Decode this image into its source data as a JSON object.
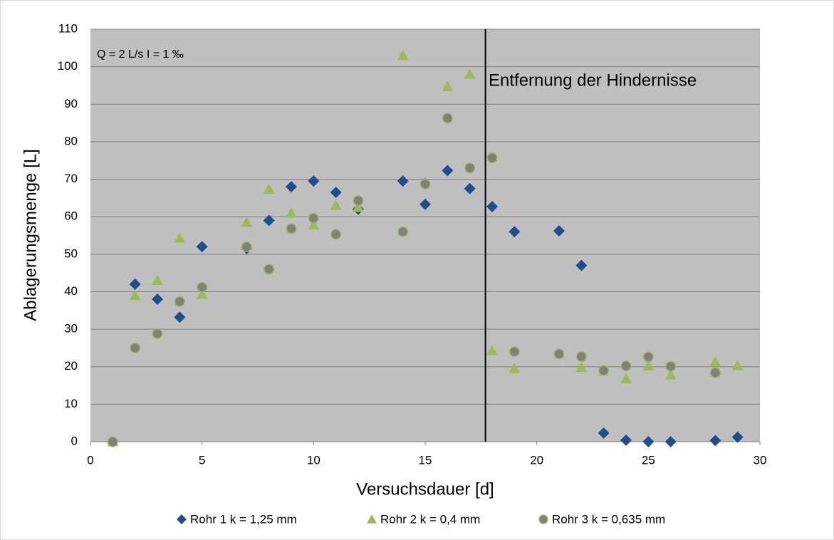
{
  "chart_data": {
    "type": "scatter",
    "xlabel": "Versuchsdauer [d]",
    "ylabel": "Ablagerungsmenge [L]",
    "annotations": [
      "Q = 2 L/s   I = 1 ‰",
      "Entfernung der Hindernisse"
    ],
    "vline_x": 17.7,
    "xlim": [
      0,
      30
    ],
    "xticks": [
      0,
      5,
      10,
      15,
      20,
      25,
      30
    ],
    "ylim": [
      0,
      110
    ],
    "yticks": [
      0,
      10,
      20,
      30,
      40,
      50,
      60,
      70,
      80,
      90,
      100,
      110
    ],
    "grid": true,
    "legend": "bottom",
    "series": [
      {
        "name": "Rohr 1 k = 1,25 mm",
        "color": "#1f4e8c",
        "marker": "diamond",
        "x": [
          1,
          2,
          3,
          4,
          5,
          7,
          8,
          9,
          10,
          11,
          12,
          14,
          15,
          16,
          17,
          18,
          19,
          21,
          22,
          23,
          24,
          25,
          26,
          28,
          29
        ],
        "values": [
          0,
          42,
          38,
          33.2,
          52,
          51.5,
          59,
          68,
          69.5,
          66.5,
          62,
          69.5,
          63.3,
          72.3,
          67.5,
          62.7,
          56,
          56.2,
          47,
          2.3,
          0.4,
          0,
          0,
          0.3,
          1.2
        ]
      },
      {
        "name": "Rohr 2 k = 0,4 mm",
        "color": "#9bbb59",
        "marker": "triangle",
        "x": [
          1,
          2,
          3,
          4,
          5,
          7,
          8,
          9,
          10,
          11,
          12,
          14,
          15,
          16,
          17,
          18,
          19,
          21,
          22,
          23,
          24,
          25,
          26,
          28,
          29
        ],
        "values": [
          0,
          39,
          43,
          54.3,
          39.3,
          58.5,
          67.3,
          61,
          57.8,
          63,
          62.5,
          103,
          69.3,
          94.7,
          98,
          24.3,
          19.5,
          23.5,
          19.8,
          18.8,
          16.8,
          20.2,
          17.8,
          21.3,
          20.3
        ]
      },
      {
        "name": "Rohr 3 k = 0,635 mm",
        "color": "#7f7f7f",
        "marker": "circle",
        "x": [
          1,
          2,
          3,
          4,
          5,
          7,
          8,
          9,
          10,
          11,
          12,
          14,
          15,
          16,
          17,
          18,
          19,
          21,
          22,
          23,
          24,
          25,
          26,
          28
        ],
        "values": [
          0,
          25,
          28.8,
          37.4,
          41.2,
          52,
          46,
          56.8,
          59.6,
          55.3,
          64.3,
          56,
          68.7,
          86.3,
          73,
          75.7,
          24,
          23.4,
          22.7,
          19,
          20.2,
          22.6,
          20.1,
          18.4
        ]
      }
    ]
  }
}
